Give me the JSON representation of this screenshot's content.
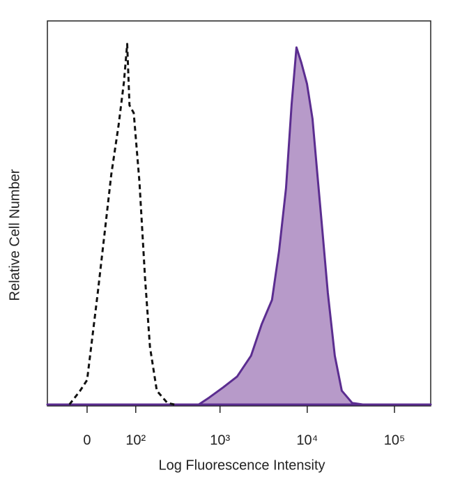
{
  "chart_data": {
    "type": "histogram-overlay",
    "x_label": "Log Fluorescence Intensity",
    "y_label": "Relative Cell Number",
    "xscale": "asinh",
    "xlim": [
      -75,
      260000
    ],
    "ylim": [
      0,
      100
    ],
    "xticks": [
      0,
      {
        "value": 100,
        "label": "10²"
      },
      {
        "value": 1000,
        "label": "10³"
      },
      {
        "value": 10000,
        "label": "10⁴"
      },
      {
        "value": 100000,
        "label": "10⁵"
      }
    ],
    "series": [
      {
        "color": "#111111",
        "dash": true,
        "fill": false,
        "x": [
          -29,
          -11,
          0,
          17,
          29,
          41,
          56,
          68,
          76,
          82,
          94,
          112,
          132,
          152,
          184,
          246,
          297
        ],
        "values": [
          0,
          3.6,
          6.4,
          29,
          45,
          60,
          73,
          84,
          94,
          78,
          76,
          58,
          33,
          15,
          3.6,
          0.4,
          0
        ]
      },
      {
        "color": "#5b2d90",
        "fillColor": "#b79ac9",
        "dash": false,
        "fill": true,
        "x": [
          -75,
          570,
          750,
          1090,
          1570,
          2270,
          3000,
          3950,
          4750,
          5710,
          6620,
          7530,
          8570,
          9930,
          11500,
          13080,
          14900,
          17230,
          20700,
          24900,
          32800,
          43300,
          260000
        ],
        "values": [
          0,
          0,
          1.8,
          4.5,
          7.3,
          12.7,
          20.9,
          27.3,
          40,
          56.4,
          78.2,
          93.1,
          89.1,
          83.6,
          74.5,
          60,
          45.5,
          29.1,
          12.7,
          3.6,
          0.4,
          0,
          0
        ]
      }
    ]
  }
}
